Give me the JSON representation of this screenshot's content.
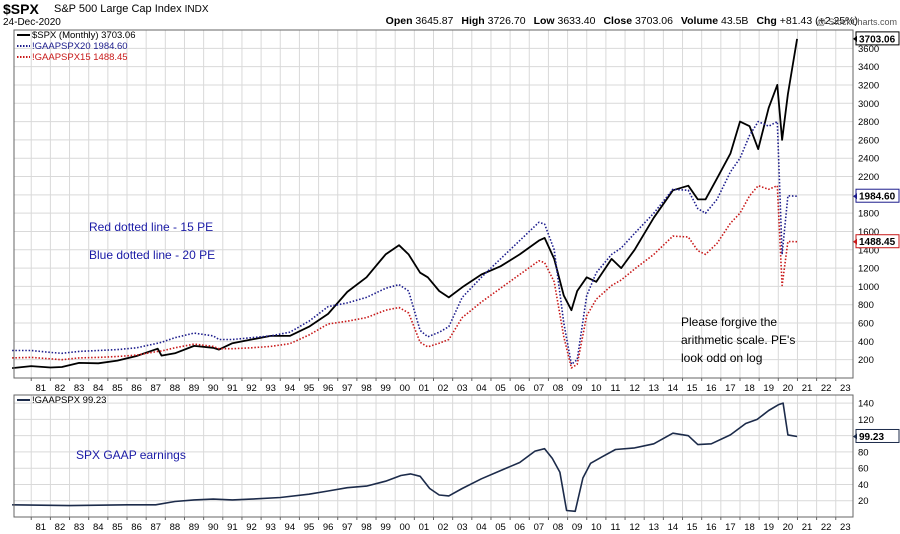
{
  "header": {
    "symbol": "$SPX",
    "description": "S&P 500 Large Cap Index",
    "exchange": "INDX",
    "date": "24-Dec-2020",
    "watermark": "@ StockCharts.com",
    "quote": [
      {
        "label": "Open",
        "value": "3645.87"
      },
      {
        "label": "High",
        "value": "3726.70"
      },
      {
        "label": "Low",
        "value": "3633.40"
      },
      {
        "label": "Close",
        "value": "3703.06"
      },
      {
        "label": "Volume",
        "value": "43.5B"
      },
      {
        "label": "Chg",
        "value": "+81.43 (+2.25%)"
      }
    ]
  },
  "annotations": {
    "red_line": "Red dotted line - 15 PE",
    "blue_line": "Blue dotted line - 20 PE",
    "note_lines": [
      "Please forgive the",
      "arithmetic scale.  PE's",
      "look odd on log"
    ],
    "earnings": "SPX GAAP earnings"
  },
  "chart_data": [
    {
      "type": "line",
      "title": "$SPX S&P 500 Large Cap Index INDX",
      "xlabel": "",
      "ylabel": "",
      "ylim": [
        0,
        3800
      ],
      "x": [
        1980.0,
        1981.0,
        1982.0,
        1982.6,
        1983.5,
        1984.5,
        1985.5,
        1986.5,
        1987.6,
        1987.8,
        1988.5,
        1989.5,
        1990.5,
        1990.8,
        1991.5,
        1992.5,
        1993.5,
        1994.5,
        1995.5,
        1996.5,
        1997.5,
        1998.5,
        1999.5,
        2000.2,
        2000.7,
        2001.3,
        2001.7,
        2002.3,
        2002.8,
        2003.5,
        2004.5,
        2005.5,
        2006.5,
        2007.5,
        2007.8,
        2008.3,
        2008.8,
        2009.2,
        2009.5,
        2010.0,
        2010.5,
        2011.3,
        2011.8,
        2012.5,
        2013.5,
        2014.5,
        2015.3,
        2015.8,
        2016.2,
        2016.8,
        2017.5,
        2018.0,
        2018.5,
        2018.95,
        2019.5,
        2019.95,
        2020.2,
        2020.5,
        2020.98
      ],
      "x_ticks": [
        "81",
        "82",
        "83",
        "84",
        "85",
        "86",
        "87",
        "88",
        "89",
        "90",
        "91",
        "92",
        "93",
        "94",
        "95",
        "96",
        "97",
        "98",
        "99",
        "00",
        "01",
        "02",
        "03",
        "04",
        "05",
        "06",
        "07",
        "08",
        "09",
        "10",
        "11",
        "12",
        "13",
        "14",
        "15",
        "16",
        "17",
        "18",
        "19",
        "20",
        "21",
        "22",
        "23"
      ],
      "y_ticks": [
        200,
        400,
        600,
        800,
        1000,
        1200,
        1400,
        1600,
        1800,
        2000,
        2200,
        2400,
        2600,
        2800,
        3000,
        3200,
        3400,
        3600
      ],
      "series": [
        {
          "name": "$SPX (Monthly)",
          "label": "$SPX (Monthly) 3703.06",
          "last": "3703.06",
          "color": "#000000",
          "style": "solid",
          "values": [
            108,
            130,
            115,
            120,
            165,
            160,
            190,
            240,
            320,
            245,
            270,
            350,
            330,
            310,
            380,
            420,
            460,
            460,
            560,
            700,
            940,
            1100,
            1350,
            1450,
            1350,
            1150,
            1100,
            950,
            880,
            990,
            1130,
            1220,
            1350,
            1500,
            1530,
            1300,
            900,
            740,
            950,
            1100,
            1050,
            1300,
            1200,
            1400,
            1750,
            2050,
            2100,
            1950,
            1950,
            2180,
            2450,
            2800,
            2750,
            2500,
            2950,
            3200,
            2600,
            3100,
            3703
          ]
        },
        {
          "name": "!GAAPSPX20",
          "label": "!GAAPSPX20 1984.60",
          "last": "1984.60",
          "color": "#1c1c8c",
          "style": "dotted",
          "values": [
            300,
            300,
            280,
            270,
            290,
            300,
            310,
            330,
            380,
            390,
            440,
            490,
            460,
            420,
            420,
            440,
            460,
            500,
            620,
            780,
            820,
            880,
            980,
            1020,
            950,
            520,
            450,
            500,
            560,
            880,
            1100,
            1300,
            1500,
            1700,
            1680,
            1400,
            600,
            150,
            200,
            900,
            1150,
            1350,
            1420,
            1580,
            1800,
            2060,
            2050,
            1850,
            1800,
            1950,
            2250,
            2400,
            2650,
            2800,
            2750,
            2800,
            1350,
            1990,
            1985
          ]
        },
        {
          "name": "!GAAPSPX15",
          "label": "!GAAPSPX15 1488.45",
          "last": "1488.45",
          "color": "#c81818",
          "style": "dotted",
          "values": [
            220,
            225,
            210,
            200,
            220,
            225,
            235,
            250,
            290,
            295,
            330,
            370,
            345,
            320,
            320,
            330,
            345,
            375,
            470,
            590,
            620,
            660,
            740,
            770,
            710,
            390,
            340,
            380,
            420,
            660,
            830,
            980,
            1130,
            1280,
            1260,
            1050,
            450,
            110,
            150,
            680,
            860,
            1010,
            1070,
            1190,
            1350,
            1550,
            1540,
            1390,
            1350,
            1470,
            1690,
            1800,
            1990,
            2100,
            2060,
            2100,
            1010,
            1490,
            1488
          ]
        }
      ]
    },
    {
      "type": "line",
      "title": "!GAAPSPX 99.23",
      "xlabel": "",
      "ylabel": "",
      "ylim": [
        0,
        150
      ],
      "x": [
        1980.0,
        1983.0,
        1986.0,
        1987.5,
        1988.5,
        1989.5,
        1990.5,
        1991.5,
        1992.5,
        1994.0,
        1995.5,
        1996.5,
        1997.5,
        1998.5,
        1999.5,
        2000.3,
        2000.8,
        2001.3,
        2001.8,
        2002.3,
        2002.8,
        2003.5,
        2004.5,
        2005.5,
        2006.5,
        2007.3,
        2007.8,
        2008.2,
        2008.6,
        2008.95,
        2009.4,
        2009.8,
        2010.2,
        2010.8,
        2011.5,
        2012.5,
        2013.5,
        2014.5,
        2015.3,
        2015.8,
        2016.5,
        2017.5,
        2018.3,
        2018.9,
        2019.5,
        2020.0,
        2020.25,
        2020.5,
        2020.98
      ],
      "x_ticks": [
        "81",
        "82",
        "83",
        "84",
        "85",
        "86",
        "87",
        "88",
        "89",
        "90",
        "91",
        "92",
        "93",
        "94",
        "95",
        "96",
        "97",
        "98",
        "99",
        "00",
        "01",
        "02",
        "03",
        "04",
        "05",
        "06",
        "07",
        "08",
        "09",
        "10",
        "11",
        "12",
        "13",
        "14",
        "15",
        "16",
        "17",
        "18",
        "19",
        "20",
        "21",
        "22",
        "23"
      ],
      "y_ticks": [
        20,
        40,
        60,
        80,
        100,
        120,
        140
      ],
      "series": [
        {
          "name": "!GAAPSPX",
          "label": "!GAAPSPX 99.23",
          "last": "99.23",
          "color": "#1c2b4a",
          "style": "solid",
          "values": [
            15,
            14,
            15,
            15,
            19,
            21,
            22,
            21,
            22,
            24,
            28,
            32,
            36,
            38,
            44,
            51,
            53,
            50,
            35,
            27,
            26,
            35,
            47,
            57,
            67,
            81,
            84,
            72,
            55,
            8,
            7,
            48,
            66,
            74,
            83,
            85,
            90,
            103,
            100,
            89,
            90,
            101,
            115,
            120,
            131,
            138,
            140,
            101,
            99
          ]
        }
      ]
    }
  ]
}
